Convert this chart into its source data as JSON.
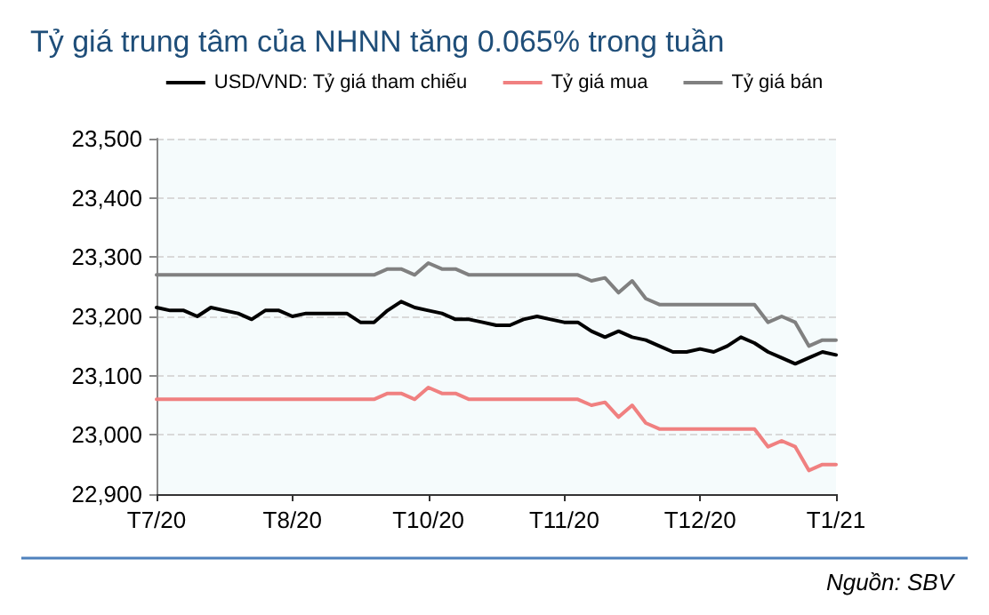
{
  "chart_data": {
    "type": "line",
    "title": "Tỷ giá trung tâm của NHNN tăng 0.065% trong tuần",
    "categories": [
      "T7/20",
      null,
      null,
      null,
      null,
      null,
      null,
      null,
      null,
      null,
      "T8/20",
      null,
      null,
      null,
      null,
      null,
      null,
      null,
      null,
      null,
      "T10/20",
      null,
      null,
      null,
      null,
      null,
      null,
      null,
      null,
      null,
      "T11/20",
      null,
      null,
      null,
      null,
      null,
      null,
      null,
      null,
      null,
      "T12/20",
      null,
      null,
      null,
      null,
      null,
      null,
      null,
      null,
      null,
      "T1/21"
    ],
    "ylim": [
      22900,
      23500
    ],
    "yticks": [
      {
        "value": 22900,
        "label": "22,900"
      },
      {
        "value": 23000,
        "label": "23,000"
      },
      {
        "value": 23100,
        "label": "23,100"
      },
      {
        "value": 23200,
        "label": "23,200"
      },
      {
        "value": 23300,
        "label": "23,300"
      },
      {
        "value": 23400,
        "label": "23,400"
      },
      {
        "value": 23500,
        "label": "23,500"
      }
    ],
    "grid": "y",
    "legend": "top",
    "marker": "none",
    "line_style": "solid",
    "annotations": [
      "Nguồn: SBV"
    ],
    "series": [
      {
        "name": "USD/VND: Tỷ giá tham chiếu",
        "color": "#000000",
        "values": [
          23215,
          23210,
          23210,
          23200,
          23215,
          23210,
          23205,
          23195,
          23210,
          23210,
          23200,
          23205,
          23205,
          23205,
          23205,
          23190,
          23190,
          23210,
          23225,
          23215,
          23210,
          23205,
          23195,
          23195,
          23190,
          23185,
          23185,
          23195,
          23200,
          23195,
          23190,
          23190,
          23175,
          23165,
          23175,
          23165,
          23160,
          23150,
          23140,
          23140,
          23145,
          23140,
          23150,
          23165,
          23155,
          23140,
          23130,
          23120,
          23130,
          23140,
          23135
        ]
      },
      {
        "name": "Tỷ giá mua",
        "color": "#f08080",
        "values": [
          23060,
          23060,
          23060,
          23060,
          23060,
          23060,
          23060,
          23060,
          23060,
          23060,
          23060,
          23060,
          23060,
          23060,
          23060,
          23060,
          23060,
          23070,
          23070,
          23060,
          23080,
          23070,
          23070,
          23060,
          23060,
          23060,
          23060,
          23060,
          23060,
          23060,
          23060,
          23060,
          23050,
          23055,
          23030,
          23050,
          23020,
          23010,
          23010,
          23010,
          23010,
          23010,
          23010,
          23010,
          23010,
          22980,
          22990,
          22980,
          22940,
          22950,
          22950
        ]
      },
      {
        "name": "Tỷ giá bán",
        "color": "#808080",
        "values": [
          23270,
          23270,
          23270,
          23270,
          23270,
          23270,
          23270,
          23270,
          23270,
          23270,
          23270,
          23270,
          23270,
          23270,
          23270,
          23270,
          23270,
          23280,
          23280,
          23270,
          23290,
          23280,
          23280,
          23270,
          23270,
          23270,
          23270,
          23270,
          23270,
          23270,
          23270,
          23270,
          23260,
          23265,
          23240,
          23260,
          23230,
          23220,
          23220,
          23220,
          23220,
          23220,
          23220,
          23220,
          23220,
          23190,
          23200,
          23190,
          23150,
          23160,
          23160
        ]
      }
    ]
  }
}
